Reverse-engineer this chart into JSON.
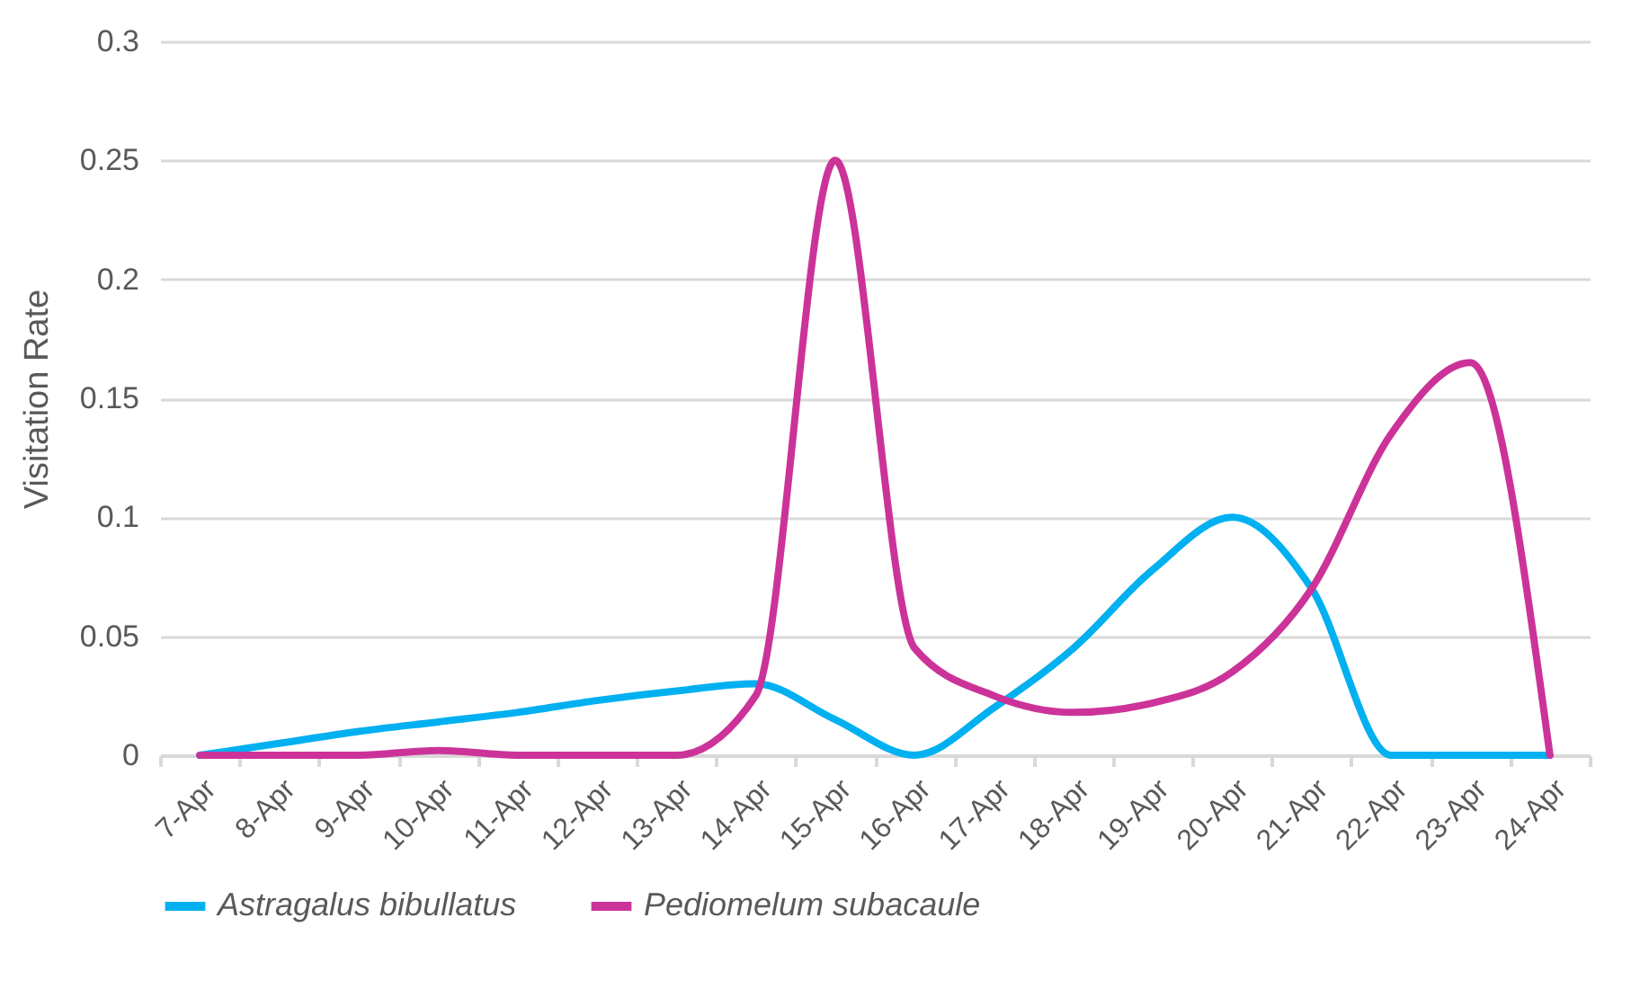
{
  "chart_data": {
    "type": "line",
    "ylabel": "Visitation Rate",
    "categories": [
      "7-Apr",
      "8-Apr",
      "9-Apr",
      "10-Apr",
      "11-Apr",
      "12-Apr",
      "13-Apr",
      "14-Apr",
      "15-Apr",
      "16-Apr",
      "17-Apr",
      "18-Apr",
      "19-Apr",
      "20-Apr",
      "21-Apr",
      "22-Apr",
      "23-Apr",
      "24-Apr"
    ],
    "series": [
      {
        "name": "Astragalus bibullatus",
        "color": "#00b0f0",
        "values": [
          0,
          0.005,
          0.01,
          0.014,
          0.018,
          0.023,
          0.027,
          0.03,
          0.015,
          0,
          0.02,
          0.045,
          0.078,
          0.1,
          0.07,
          0,
          0,
          0
        ]
      },
      {
        "name": "Pediomelum subacaule",
        "color": "#cc3399",
        "values": [
          0,
          0,
          0,
          0.002,
          0,
          0,
          0,
          0.025,
          0.25,
          0.045,
          0.025,
          0.018,
          0.022,
          0.035,
          0.07,
          0.135,
          0.165,
          0
        ]
      }
    ],
    "ylim": [
      0,
      0.3
    ],
    "yticks": [
      0,
      0.05,
      0.1,
      0.15,
      0.2,
      0.25,
      0.3
    ],
    "grid": "y",
    "legend": "bottom",
    "marker": "none",
    "line_style": "solid"
  }
}
